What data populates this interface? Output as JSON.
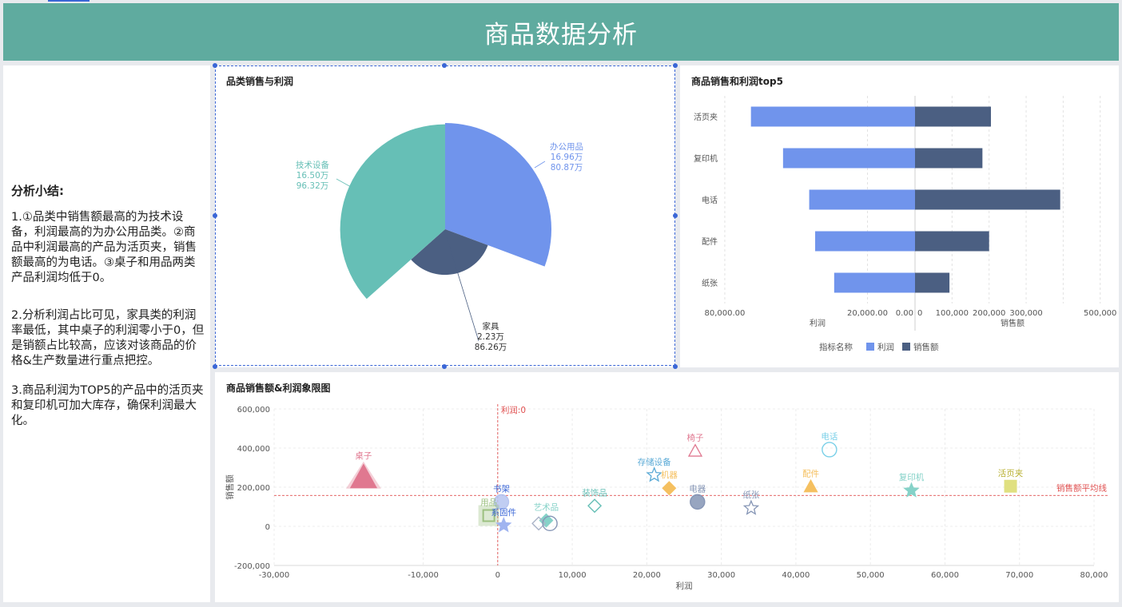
{
  "header": {
    "title": "商品数据分析"
  },
  "summary": {
    "heading": "分析小结:",
    "p1": "1.①品类中销售额最高的为技术设备，利润最高的为办公用品类。②商品中利润最高的产品为活页夹，销售额最高的为电话。③桌子和用品两类产品利润均低于0。",
    "p2": "2.分析利润占比可见，家具类的利润率最低，其中桌子的利润零小于0，但是销额占比较高，应该对该商品的价格&生产数量进行重点把控。",
    "p3": "3.商品利润为TOP5的产品中的活页夹和复印机可加大库存，确保利润最大化。"
  },
  "chart_data": [
    {
      "type": "pie",
      "title": "品类销售与利润",
      "slices": [
        {
          "name": "办公用品",
          "profit_label": "16.96万",
          "sales_label": "80.87万",
          "profit": 16.96,
          "sales": 80.87,
          "color": "#7094ec"
        },
        {
          "name": "家具",
          "profit_label": "2.23万",
          "sales_label": "86.26万",
          "profit": 2.23,
          "sales": 86.26,
          "color": "#4b5f82"
        },
        {
          "name": "技术设备",
          "profit_label": "16.50万",
          "sales_label": "96.32万",
          "profit": 16.5,
          "sales": 96.32,
          "color": "#66bfb6"
        }
      ]
    },
    {
      "type": "bar",
      "title": "商品销售和利润top5",
      "categories": [
        "活页夹",
        "复印机",
        "电话",
        "配件",
        "纸张"
      ],
      "series": [
        {
          "name": "利润",
          "values": [
            69000,
            55500,
            44500,
            42000,
            34000
          ],
          "color": "#7094ec"
        },
        {
          "name": "销售额",
          "values": [
            205000,
            182000,
            392000,
            200000,
            93000
          ],
          "color": "#4b5f82"
        }
      ],
      "left_axis": {
        "label": "利润",
        "ticks": [
          "80,000.00",
          "20,000.00",
          "0.00"
        ]
      },
      "right_axis": {
        "label": "销售额",
        "ticks": [
          "0",
          "100,000",
          "200,000",
          "300,000",
          "500,000"
        ]
      },
      "legend_title": "指标名称",
      "legend": [
        "利润",
        "销售额"
      ],
      "legend_position": "bottom"
    },
    {
      "type": "scatter",
      "title": "商品销售额&利润象限图",
      "xlabel": "利润",
      "ylabel": "销售额",
      "xlim": [
        -30000,
        80000
      ],
      "ylim": [
        -200000,
        600000
      ],
      "x_ticks": [
        "-30,000",
        "-10,000",
        "0",
        "10,000",
        "20,000",
        "30,000",
        "40,000",
        "50,000",
        "60,000",
        "70,000",
        "80,000"
      ],
      "y_ticks": [
        "600,000",
        "400,000",
        "200,000",
        "0",
        "-200,000"
      ],
      "x_ref": {
        "value": 0,
        "label": "利润:0"
      },
      "y_ref": {
        "value": 158000,
        "label": "销售额平均线"
      },
      "points": [
        {
          "name": "桌子",
          "x": -18000,
          "y": 250000,
          "shape": "triangle",
          "color": "#e07890"
        },
        {
          "name": "椅子",
          "x": 26500,
          "y": 385000,
          "shape": "triangle-outline",
          "color": "#e07890"
        },
        {
          "name": "电话",
          "x": 44500,
          "y": 392000,
          "shape": "circle-outline",
          "color": "#7ad0e8"
        },
        {
          "name": "存储设备",
          "x": 21000,
          "y": 262000,
          "shape": "star-outline",
          "color": "#5aaad6"
        },
        {
          "name": "机器",
          "x": 23000,
          "y": 195000,
          "shape": "diamond",
          "color": "#f5c060"
        },
        {
          "name": "配件",
          "x": 42000,
          "y": 203000,
          "shape": "triangle",
          "color": "#f5c060"
        },
        {
          "name": "复印机",
          "x": 55500,
          "y": 183000,
          "shape": "star",
          "color": "#85d2c8"
        },
        {
          "name": "活页夹",
          "x": 68800,
          "y": 205000,
          "shape": "square",
          "color": "#e0e080"
        },
        {
          "name": "电器",
          "x": 26800,
          "y": 125000,
          "shape": "circle",
          "color": "#8595b5"
        },
        {
          "name": "纸张",
          "x": 34000,
          "y": 93000,
          "shape": "star-outline",
          "color": "#8595b5"
        },
        {
          "name": "装饰品",
          "x": 13000,
          "y": 105000,
          "shape": "diamond-outline",
          "color": "#66bfb6"
        },
        {
          "name": "书架",
          "x": 500,
          "y": 125000,
          "shape": "circle",
          "color": "#b5c4f0"
        },
        {
          "name": "用品",
          "x": -1200,
          "y": 55000,
          "shape": "square-outline",
          "color": "#9cc080"
        },
        {
          "name": "系固件",
          "x": 800,
          "y": 5000,
          "shape": "star",
          "color": "#a0b4f0"
        },
        {
          "name": "艺术品",
          "x": 6500,
          "y": 30000,
          "shape": "diamond",
          "color": "#85d2c8"
        },
        {
          "name": "",
          "x": 5500,
          "y": 15000,
          "shape": "diamond-outline",
          "color": "#aab4c8"
        },
        {
          "name": "",
          "x": 7000,
          "y": 15000,
          "shape": "circle-outline",
          "color": "#8595b5"
        }
      ]
    }
  ]
}
